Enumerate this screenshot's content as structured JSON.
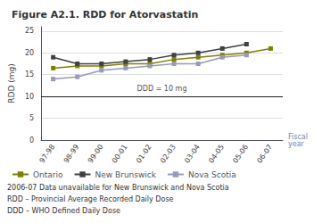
{
  "chart_data": {
    "type": "line",
    "title": "Figure A2.1. RDD for Atorvastatin",
    "ylabel": "RDD (mg)",
    "xlabel": "Fiscal\nyear",
    "categories": [
      "97-98",
      "98-99",
      "99-00",
      "00-01",
      "01-02",
      "02-03",
      "03-04",
      "04-05",
      "05-06",
      "06-07"
    ],
    "series": [
      {
        "name": "Ontario",
        "color": "#808000",
        "marker": "square",
        "values": [
          16.5,
          17.0,
          17.0,
          17.5,
          17.5,
          18.5,
          19.0,
          19.5,
          20.0,
          21.0
        ]
      },
      {
        "name": "New Brunswick",
        "color": "#404040",
        "marker": "square",
        "values": [
          19.0,
          17.5,
          17.5,
          18.0,
          18.5,
          19.5,
          20.0,
          21.0,
          22.0,
          null
        ]
      },
      {
        "name": "Nova Scotia",
        "color": "#9999BB",
        "marker": "square",
        "values": [
          14.0,
          14.5,
          16.0,
          16.5,
          17.0,
          17.5,
          17.5,
          19.0,
          19.5,
          null
        ]
      }
    ],
    "hline": {
      "value": 10,
      "label": "DDD = 10 mg",
      "color": "#222222"
    },
    "notes": [
      "2006-07 Data unavailable for New Brunswick and Nova Scotia",
      "RDD – Provincial Average Recorded Daily Dose",
      "DDD – WHO Defined Daily Dose"
    ],
    "ylim": [
      0,
      26
    ],
    "yticks": [
      0,
      5,
      10,
      15,
      20,
      25
    ],
    "grid": true,
    "legend": "bottom left"
  }
}
